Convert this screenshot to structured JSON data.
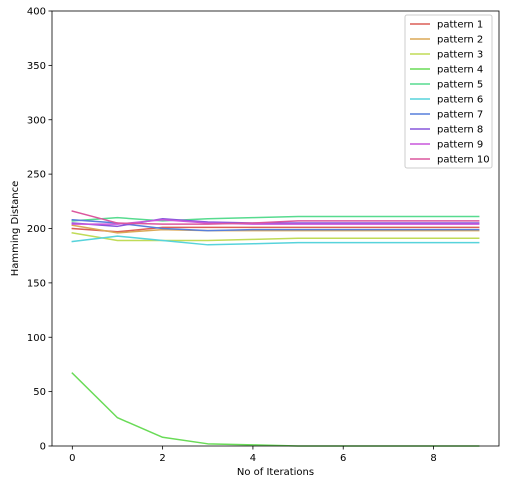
{
  "chart_data": {
    "type": "line",
    "xlabel": "No of Iterations",
    "ylabel": "Hamming Distance",
    "xlim": [
      -0.45,
      9.45
    ],
    "ylim": [
      0,
      400
    ],
    "xticks": [
      0,
      2,
      4,
      6,
      8
    ],
    "yticks": [
      0,
      50,
      100,
      150,
      200,
      250,
      300,
      350,
      400
    ],
    "grid": false,
    "legend_position": "top-right",
    "x": [
      0,
      1,
      2,
      3,
      4,
      5,
      6,
      7,
      8,
      9
    ],
    "series": [
      {
        "name": "pattern 1",
        "color": "#db5f57",
        "values": [
          200,
          197,
          201,
          201,
          201,
          201,
          201,
          201,
          201,
          201
        ]
      },
      {
        "name": "pattern 2",
        "color": "#dba857",
        "values": [
          203,
          196,
          199,
          198,
          198,
          198,
          198,
          198,
          198,
          198
        ]
      },
      {
        "name": "pattern 3",
        "color": "#c0db57",
        "values": [
          196,
          189,
          189,
          189,
          190,
          191,
          191,
          191,
          191,
          191
        ]
      },
      {
        "name": "pattern 4",
        "color": "#69db57",
        "values": [
          67,
          26,
          8,
          2,
          1,
          0,
          0,
          0,
          0,
          0
        ]
      },
      {
        "name": "pattern 5",
        "color": "#57db8f",
        "values": [
          207,
          210,
          207,
          209,
          210,
          211,
          211,
          211,
          211,
          211
        ]
      },
      {
        "name": "pattern 6",
        "color": "#57d3db",
        "values": [
          188,
          193,
          189,
          185,
          186,
          187,
          187,
          187,
          187,
          187
        ]
      },
      {
        "name": "pattern 7",
        "color": "#577fdb",
        "values": [
          208,
          205,
          200,
          198,
          199,
          199,
          199,
          199,
          199,
          199
        ]
      },
      {
        "name": "pattern 8",
        "color": "#8757db",
        "values": [
          205,
          202,
          209,
          206,
          205,
          205,
          205,
          205,
          205,
          205
        ]
      },
      {
        "name": "pattern 9",
        "color": "#c957db",
        "values": [
          204,
          204,
          208,
          205,
          204,
          204,
          204,
          204,
          204,
          204
        ]
      },
      {
        "name": "pattern 10",
        "color": "#db579e",
        "values": [
          216,
          205,
          204,
          204,
          205,
          207,
          207,
          207,
          207,
          207
        ]
      }
    ]
  }
}
